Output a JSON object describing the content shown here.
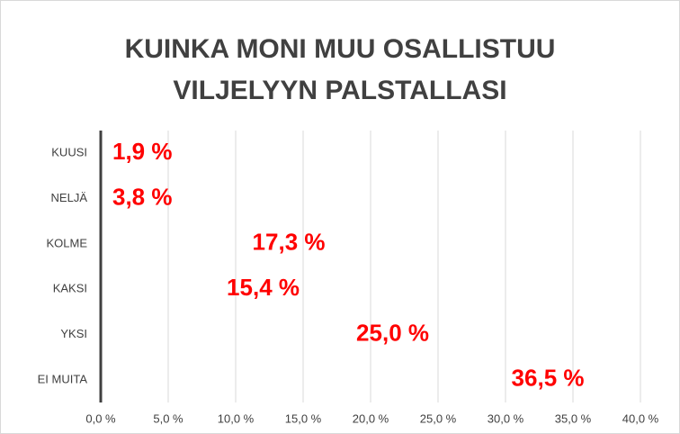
{
  "chart_data": {
    "type": "bar",
    "orientation": "horizontal",
    "title": "KUINKA MONI MUU OSALLISTUU VILJELYYN PALSTALLASI",
    "categories": [
      "KUUSI",
      "NELJÄ",
      "KOLME",
      "KAKSI",
      "YKSI",
      "EI MUITA"
    ],
    "values": [
      1.9,
      3.8,
      17.3,
      15.4,
      25.0,
      36.5
    ],
    "value_labels": [
      "1,9 %",
      "3,8 %",
      "17,3 %",
      "15,4 %",
      "25,0 %",
      "36,5 %"
    ],
    "label_color": "#ff0000",
    "xlim": [
      0,
      40
    ],
    "xticks": [
      {
        "value": 0,
        "label": "0,0 %"
      },
      {
        "value": 5,
        "label": "5,0 %"
      },
      {
        "value": 10,
        "label": "10,0 %"
      },
      {
        "value": 15,
        "label": "15,0 %"
      },
      {
        "value": 20,
        "label": "20,0 %"
      },
      {
        "value": 25,
        "label": "25,0 %"
      },
      {
        "value": 30,
        "label": "30,0 %"
      },
      {
        "value": 35,
        "label": "35,0 %"
      },
      {
        "value": 40,
        "label": "40,0 %"
      }
    ],
    "grid": true
  }
}
